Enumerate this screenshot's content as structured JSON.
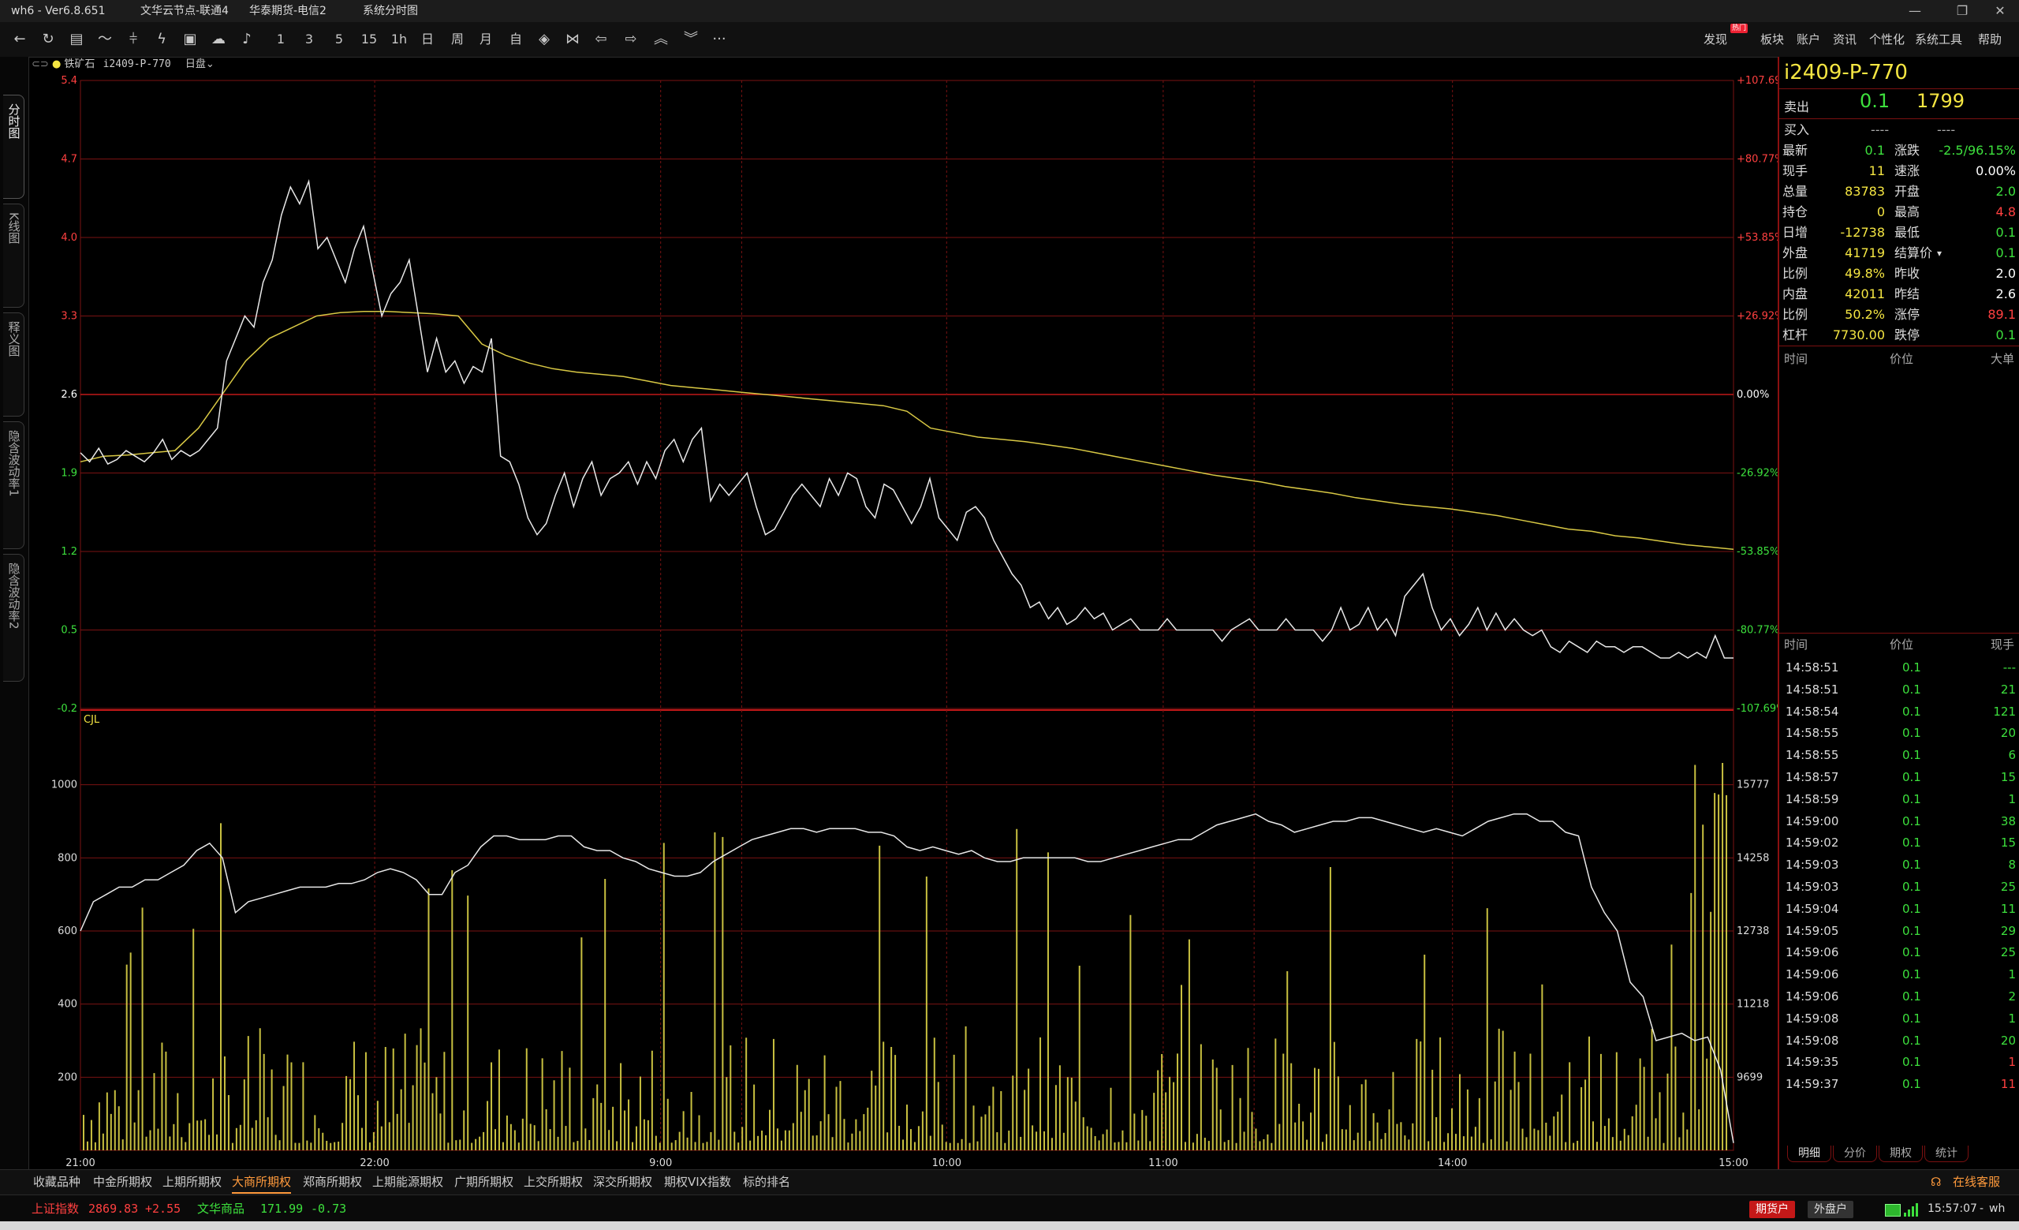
{
  "titlebar": {
    "app": "wh6 - Ver6.8.651",
    "node": "文华云节点-联通4",
    "broker": "华泰期货-电信2",
    "view": "系统分时图"
  },
  "toolbar": {
    "periods": [
      "1",
      "3",
      "5",
      "15",
      "1h",
      "日",
      "周",
      "月",
      "自"
    ],
    "right_items": [
      "发现",
      "板块",
      "账户",
      "资讯",
      "个性化",
      "系统工具",
      "帮助"
    ],
    "hot_badge": "热门"
  },
  "info": {
    "symbol_name": "铁矿石",
    "symbol_code": "i2409-P-770",
    "period": "日盘"
  },
  "left_tabs": [
    "分时图",
    "K线图",
    "释义图",
    "隐含波动率1",
    "隐含波动率2"
  ],
  "chart_data": {
    "type": "line",
    "price_axis": {
      "ticks": [
        "5.4",
        "4.7",
        "4.0",
        "3.3",
        "2.6",
        "1.9",
        "1.2",
        "0.5",
        "-0.2"
      ],
      "pct_ticks": [
        "+107.69%",
        "+80.77%",
        "+53.85%",
        "+26.92%",
        "0.00%",
        "-26.92%",
        "-53.85%",
        "-80.77%",
        "-107.69%"
      ],
      "ylim": [
        -0.2,
        5.4
      ],
      "prev_settle": 2.6
    },
    "volume_axis": {
      "label": "CJL",
      "ticks": [
        "1000",
        "800",
        "600",
        "400",
        "200"
      ],
      "oi_ticks": [
        "15777",
        "14258",
        "12738",
        "11218",
        "9699"
      ],
      "ylim": [
        0,
        1200
      ]
    },
    "time_labels": [
      "21:00",
      "22:00",
      "9:00",
      "10:00",
      "11:00",
      "14:00",
      "15:00"
    ],
    "price_series": [
      2.08,
      2.0,
      2.12,
      1.98,
      2.02,
      2.1,
      2.05,
      2.0,
      2.08,
      2.2,
      2.02,
      2.1,
      2.05,
      2.1,
      2.2,
      2.3,
      2.9,
      3.1,
      3.3,
      3.2,
      3.6,
      3.8,
      4.2,
      4.45,
      4.3,
      4.5,
      3.9,
      4.0,
      3.8,
      3.6,
      3.9,
      4.1,
      3.7,
      3.3,
      3.5,
      3.6,
      3.8,
      3.3,
      2.8,
      3.1,
      2.8,
      2.9,
      2.7,
      2.85,
      2.8,
      3.1,
      2.05,
      2.0,
      1.8,
      1.5,
      1.35,
      1.45,
      1.7,
      1.9,
      1.6,
      1.85,
      2.0,
      1.7,
      1.85,
      1.9,
      2.0,
      1.8,
      2.0,
      1.85,
      2.1,
      2.2,
      2.0,
      2.2,
      2.3,
      1.65,
      1.8,
      1.7,
      1.8,
      1.9,
      1.6,
      1.35,
      1.4,
      1.55,
      1.7,
      1.8,
      1.7,
      1.6,
      1.85,
      1.7,
      1.9,
      1.85,
      1.6,
      1.5,
      1.8,
      1.75,
      1.6,
      1.45,
      1.6,
      1.85,
      1.5,
      1.4,
      1.3,
      1.55,
      1.6,
      1.5,
      1.3,
      1.15,
      1.0,
      0.9,
      0.7,
      0.75,
      0.6,
      0.7,
      0.55,
      0.6,
      0.7,
      0.6,
      0.65,
      0.5,
      0.55,
      0.6,
      0.5,
      0.5,
      0.5,
      0.6,
      0.5,
      0.5,
      0.5,
      0.5,
      0.5,
      0.4,
      0.5,
      0.55,
      0.6,
      0.5,
      0.5,
      0.5,
      0.6,
      0.5,
      0.5,
      0.5,
      0.4,
      0.5,
      0.7,
      0.5,
      0.55,
      0.7,
      0.5,
      0.6,
      0.45,
      0.8,
      0.9,
      1.0,
      0.7,
      0.5,
      0.6,
      0.45,
      0.55,
      0.7,
      0.5,
      0.65,
      0.5,
      0.6,
      0.5,
      0.45,
      0.5,
      0.35,
      0.3,
      0.4,
      0.35,
      0.3,
      0.4,
      0.35,
      0.35,
      0.3,
      0.35,
      0.35,
      0.3,
      0.25,
      0.25,
      0.3,
      0.25,
      0.3,
      0.25,
      0.45,
      0.25,
      0.25
    ],
    "avg_series": [
      2.0,
      2.05,
      2.06,
      2.08,
      2.1,
      2.3,
      2.6,
      2.9,
      3.1,
      3.2,
      3.3,
      3.33,
      3.34,
      3.34,
      3.33,
      3.32,
      3.3,
      3.05,
      2.95,
      2.88,
      2.83,
      2.8,
      2.78,
      2.76,
      2.72,
      2.68,
      2.66,
      2.64,
      2.62,
      2.6,
      2.58,
      2.56,
      2.54,
      2.52,
      2.5,
      2.45,
      2.3,
      2.26,
      2.22,
      2.2,
      2.18,
      2.15,
      2.12,
      2.08,
      2.04,
      2.0,
      1.96,
      1.92,
      1.88,
      1.85,
      1.82,
      1.78,
      1.75,
      1.72,
      1.68,
      1.65,
      1.62,
      1.6,
      1.58,
      1.55,
      1.52,
      1.48,
      1.44,
      1.4,
      1.38,
      1.34,
      1.32,
      1.29,
      1.26,
      1.24,
      1.22
    ],
    "oi_series": [
      600,
      680,
      700,
      720,
      720,
      740,
      740,
      760,
      780,
      820,
      840,
      800,
      650,
      680,
      690,
      700,
      710,
      720,
      720,
      720,
      730,
      730,
      740,
      760,
      770,
      760,
      740,
      700,
      700,
      760,
      780,
      830,
      860,
      860,
      850,
      850,
      850,
      860,
      860,
      830,
      820,
      820,
      800,
      790,
      770,
      760,
      750,
      750,
      760,
      790,
      810,
      830,
      850,
      860,
      870,
      880,
      880,
      870,
      880,
      880,
      880,
      870,
      870,
      860,
      830,
      820,
      830,
      820,
      810,
      820,
      800,
      790,
      790,
      800,
      800,
      800,
      800,
      800,
      790,
      790,
      800,
      810,
      820,
      830,
      840,
      850,
      850,
      870,
      890,
      900,
      910,
      920,
      900,
      890,
      870,
      880,
      890,
      900,
      900,
      910,
      910,
      900,
      890,
      880,
      870,
      880,
      870,
      860,
      880,
      900,
      910,
      920,
      920,
      900,
      900,
      870,
      860,
      720,
      650,
      600,
      460,
      420,
      300,
      310,
      320,
      300,
      310,
      220,
      20
    ]
  },
  "quote_panel": {
    "title": "i2409-P-770",
    "ask_label": "卖出",
    "ask_price": "0.1",
    "ask_vol": "1799",
    "bid_label": "买入",
    "bid_price": "----",
    "bid_vol": "----",
    "rows": [
      {
        "l1": "最新",
        "v1": "0.1",
        "c1": "green",
        "l2": "涨跌",
        "v2": "-2.5/96.15%",
        "c2": "green"
      },
      {
        "l1": "现手",
        "v1": "11",
        "c1": "yellow",
        "l2": "速涨",
        "v2": "0.00%",
        "c2": "white"
      },
      {
        "l1": "总量",
        "v1": "83783",
        "c1": "yellow",
        "l2": "开盘",
        "v2": "2.0",
        "c2": "green"
      },
      {
        "l1": "持仓",
        "v1": "0",
        "c1": "yellow",
        "l2": "最高",
        "v2": "4.8",
        "c2": "red"
      },
      {
        "l1": "日增",
        "v1": "-12738",
        "c1": "yellow",
        "l2": "最低",
        "v2": "0.1",
        "c2": "green"
      },
      {
        "l1": "外盘",
        "v1": "41719",
        "c1": "yellow",
        "l2": "结算价",
        "v2": "0.1",
        "c2": "green"
      },
      {
        "l1": "比例",
        "v1": "49.8%",
        "c1": "yellow",
        "l2": "昨收",
        "v2": "2.0",
        "c2": "white"
      },
      {
        "l1": "内盘",
        "v1": "42011",
        "c1": "yellow",
        "l2": "昨结",
        "v2": "2.6",
        "c2": "white"
      },
      {
        "l1": "比例",
        "v1": "50.2%",
        "c1": "yellow",
        "l2": "涨停",
        "v2": "89.1",
        "c2": "red"
      },
      {
        "l1": "杠杆",
        "v1": "7730.00",
        "c1": "yellow",
        "l2": "跌停",
        "v2": "0.1",
        "c2": "green"
      }
    ],
    "bigorder_headers": [
      "时间",
      "价位",
      "大单"
    ],
    "tick_headers": [
      "时间",
      "价位",
      "现手"
    ],
    "ticks": [
      {
        "t": "14:58:51",
        "p": "0.1",
        "q": "---",
        "c": "green"
      },
      {
        "t": "14:58:51",
        "p": "0.1",
        "q": "21",
        "c": "green"
      },
      {
        "t": "14:58:54",
        "p": "0.1",
        "q": "121",
        "c": "green"
      },
      {
        "t": "14:58:55",
        "p": "0.1",
        "q": "20",
        "c": "green"
      },
      {
        "t": "14:58:55",
        "p": "0.1",
        "q": "6",
        "c": "green"
      },
      {
        "t": "14:58:57",
        "p": "0.1",
        "q": "15",
        "c": "green"
      },
      {
        "t": "14:58:59",
        "p": "0.1",
        "q": "1",
        "c": "green"
      },
      {
        "t": "14:59:00",
        "p": "0.1",
        "q": "38",
        "c": "green"
      },
      {
        "t": "14:59:02",
        "p": "0.1",
        "q": "15",
        "c": "green"
      },
      {
        "t": "14:59:03",
        "p": "0.1",
        "q": "8",
        "c": "green"
      },
      {
        "t": "14:59:03",
        "p": "0.1",
        "q": "25",
        "c": "green"
      },
      {
        "t": "14:59:04",
        "p": "0.1",
        "q": "11",
        "c": "green"
      },
      {
        "t": "14:59:05",
        "p": "0.1",
        "q": "29",
        "c": "green"
      },
      {
        "t": "14:59:06",
        "p": "0.1",
        "q": "25",
        "c": "green"
      },
      {
        "t": "14:59:06",
        "p": "0.1",
        "q": "1",
        "c": "green"
      },
      {
        "t": "14:59:06",
        "p": "0.1",
        "q": "2",
        "c": "green"
      },
      {
        "t": "14:59:08",
        "p": "0.1",
        "q": "1",
        "c": "green"
      },
      {
        "t": "14:59:08",
        "p": "0.1",
        "q": "20",
        "c": "green"
      },
      {
        "t": "14:59:35",
        "p": "0.1",
        "q": "1",
        "c": "red"
      },
      {
        "t": "14:59:37",
        "p": "0.1",
        "q": "11",
        "c": "red"
      }
    ],
    "bottom_tabs": [
      "明细",
      "分价",
      "期权",
      "统计"
    ]
  },
  "exchange_tabs": [
    "收藏品种",
    "中金所期权",
    "上期所期权",
    "大商所期权",
    "郑商所期权",
    "上期能源期权",
    "广期所期权",
    "上交所期权",
    "深交所期权",
    "期权VIX指数",
    "标的排名"
  ],
  "active_exchange": "大商所期权",
  "status": {
    "idx1_name": "上证指数",
    "idx1_val": "2869.83",
    "idx1_chg": "+2.55",
    "idx2_name": "文华商品",
    "idx2_val": "171.99",
    "idx2_chg": "-0.73",
    "service": "在线客服",
    "btn_futures": "期货户",
    "btn_outer": "外盘户",
    "time": "15:57:07",
    "user": "wh"
  },
  "colors": {
    "price_line": "#e8e8e8",
    "avg_line": "#d8c844",
    "volume_bar": "#c8c040",
    "grid": "#7a1212",
    "up": "#ff4040",
    "down": "#3de03d",
    "accent": "#f5e642"
  }
}
